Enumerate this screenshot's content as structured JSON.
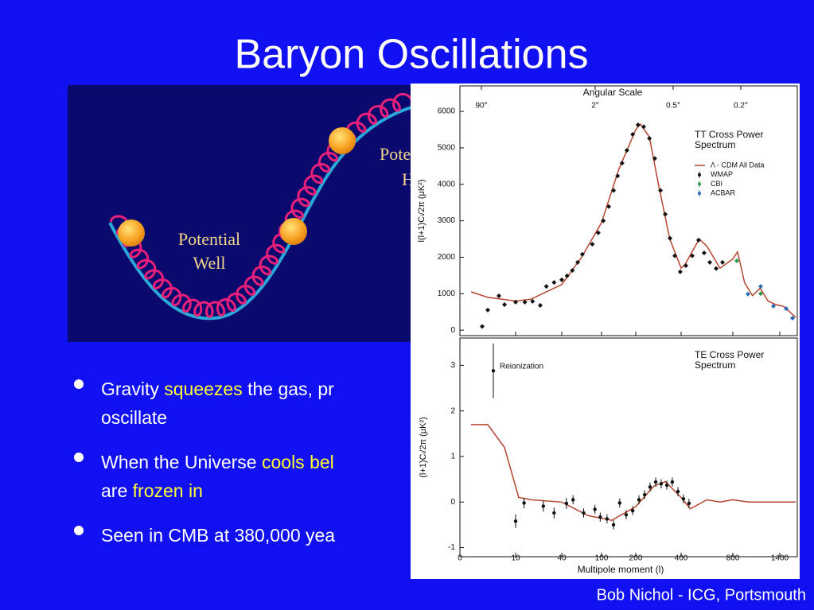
{
  "title": "Baryon Oscillations",
  "diagram": {
    "well": [
      "Potential",
      "Well"
    ],
    "hill": [
      "Pote",
      "H"
    ]
  },
  "bullets": [
    {
      "lines": [
        [
          {
            "text": "Gravity "
          },
          {
            "text": "squeezes",
            "highlight": true
          },
          {
            "text": " the gas, pr"
          }
        ],
        [
          {
            "text": "oscillate"
          }
        ]
      ]
    },
    {
      "lines": [
        [
          {
            "text": "When the Universe "
          },
          {
            "text": "cools bel",
            "highlight": true
          }
        ],
        [
          {
            "text": "are "
          },
          {
            "text": "frozen in",
            "highlight": true
          }
        ]
      ]
    },
    {
      "lines": [
        [
          {
            "text": "Seen in CMB at 380,000 yea"
          }
        ]
      ]
    }
  ],
  "figure": {
    "top_axis_label": "Angular Scale",
    "top_ticks": [
      "90°",
      "2°",
      "0.5°",
      "0.2°"
    ],
    "xlabel": "Multipole moment (l)",
    "xticks": [
      0,
      10,
      40,
      100,
      200,
      400,
      800,
      1400
    ],
    "xlim": [
      0,
      1620
    ],
    "tt": {
      "title": [
        "TT Cross Power",
        "Spectrum"
      ],
      "ylabel": "l(l+1)Cₗ/2π (μK²)",
      "ylim": [
        -150,
        6700
      ],
      "yticks": [
        0,
        1000,
        2000,
        3000,
        4000,
        5000,
        6000
      ],
      "legend": [
        {
          "name": "Λ - CDM All Data",
          "color": "#b5452f"
        },
        {
          "name": "WMAP",
          "color": "#111111"
        },
        {
          "name": "CBI",
          "color": "#2a9a4a"
        },
        {
          "name": "ACBAR",
          "color": "#2a6ab5"
        }
      ],
      "model": {
        "l": [
          2,
          5,
          10,
          20,
          40,
          70,
          100,
          150,
          200,
          220,
          260,
          300,
          350,
          400,
          430,
          540,
          600,
          700,
          800,
          860,
          950,
          1050,
          1150,
          1250,
          1350,
          1450,
          1600
        ],
        "values": [
          1050,
          900,
          800,
          850,
          1250,
          2000,
          2950,
          4400,
          5500,
          5650,
          5300,
          4000,
          2500,
          1700,
          1800,
          2500,
          2300,
          1700,
          1950,
          2150,
          1300,
          950,
          1150,
          800,
          700,
          650,
          350
        ]
      },
      "wmap": {
        "l": [
          4,
          5,
          7,
          8,
          10,
          16,
          21,
          26,
          30,
          35,
          40,
          48,
          56,
          64,
          71,
          86,
          95,
          105,
          121,
          135,
          147,
          160,
          174,
          191,
          210,
          235,
          260,
          284,
          309,
          330,
          351,
          372,
          396,
          437,
          486,
          535,
          578,
          622,
          671,
          720
        ],
        "values": [
          100,
          550,
          940,
          700,
          770,
          770,
          790,
          680,
          1200,
          1310,
          1380,
          1490,
          1640,
          1860,
          2080,
          2360,
          2670,
          3000,
          3390,
          3830,
          4230,
          4580,
          4930,
          5370,
          5630,
          5580,
          5260,
          4710,
          3830,
          3180,
          2520,
          2040,
          1600,
          1770,
          2040,
          2470,
          2120,
          1860,
          1690,
          1860
        ]
      },
      "cbi": {
        "l": [
          851,
          1156
        ],
        "values": [
          1900,
          1000
        ]
      },
      "acbar": {
        "l": [
          993,
          1156,
          1319,
          1480,
          1560
        ],
        "values": [
          990,
          1200,
          660,
          590,
          330
        ]
      }
    },
    "te": {
      "title": [
        "TE Cross Power",
        "Spectrum"
      ],
      "annotation": "Reionization",
      "ylabel": "(l+1)Cₗ/2π (μK²)",
      "ylim": [
        -1.2,
        3.6
      ],
      "yticks": [
        -1,
        0,
        1,
        2,
        3
      ],
      "model": {
        "l": [
          2,
          5,
          8,
          12,
          20,
          40,
          80,
          130,
          200,
          280,
          330,
          400,
          470,
          600,
          700,
          800,
          1000,
          1600
        ],
        "values": [
          1.7,
          1.7,
          1.2,
          0.1,
          0.05,
          0,
          -0.3,
          -0.4,
          -0.1,
          0.35,
          0.45,
          0.1,
          -0.15,
          0.05,
          0,
          0.05,
          0,
          0
        ]
      },
      "points": {
        "l": [
          6,
          10,
          15.5,
          28,
          35,
          47,
          57,
          73,
          90,
          98,
          116,
          135,
          153,
          172,
          191,
          214,
          239,
          263,
          288,
          312,
          337,
          361,
          386,
          418,
          461
        ],
        "values": [
          2.88,
          -0.42,
          -0.02,
          -0.09,
          -0.24,
          -0.03,
          0.05,
          -0.24,
          -0.16,
          -0.33,
          -0.37,
          -0.5,
          -0.02,
          -0.28,
          -0.19,
          0.05,
          0.16,
          0.33,
          0.44,
          0.4,
          0.37,
          0.44,
          0.23,
          0.07,
          -0.03
        ],
        "err": [
          0.6,
          0.15,
          0.12,
          0.12,
          0.12,
          0.12,
          0.1,
          0.1,
          0.1,
          0.1,
          0.1,
          0.1,
          0.1,
          0.1,
          0.1,
          0.1,
          0.1,
          0.1,
          0.1,
          0.1,
          0.1,
          0.1,
          0.1,
          0.1,
          0.1
        ]
      }
    }
  },
  "footer": "Bob Nichol - ICG, Portsmouth"
}
